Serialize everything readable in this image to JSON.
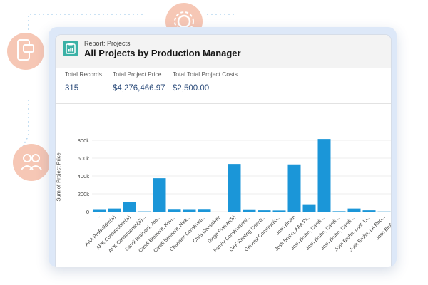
{
  "decorations": {
    "icons": [
      "gear-icon",
      "phone-chat-icon",
      "people-icon"
    ],
    "accent_color": "#f6c7b5"
  },
  "report": {
    "label": "Report: Projects",
    "title": "All Projects by Production Manager"
  },
  "summary": [
    {
      "label": "Total Records",
      "value": "315"
    },
    {
      "label": "Total Project Price",
      "value": "$4,276,466.97"
    },
    {
      "label": "Total Total Project Costs",
      "value": "$2,500.00"
    }
  ],
  "chart_data": {
    "type": "bar",
    "ylabel": "Sum of Project Price",
    "ylim": [
      0,
      800000
    ],
    "y_ticks": [
      0,
      200000,
      400000,
      600000,
      800000
    ],
    "y_tick_labels": [
      "0",
      "200k",
      "400k",
      "600k",
      "800k"
    ],
    "bar_color": "#1b96d8",
    "categories": [
      "-",
      "AAA ProBuilder(S)",
      "APK Construction(S)",
      "APK Construction(S)...",
      "Candi Brainard, Jos...",
      "Candi Brainard, Kevi...",
      "Candi Brainard, Nick...",
      "Chandler Constructi...",
      "Chris Gonsalves",
      "Diego Puente(S)",
      "Family Construction/...",
      "GAF Roofing Constr...",
      "General Constructio...",
      "Josh Bruhn",
      "Josh Bruhn, AAA Pr...",
      "Josh Bruhn, Candi ...",
      "Josh Bruhn, Candi ...",
      "Josh Bruhn, Candi ...",
      "Josh Bruhn, Lank Li...",
      "Josh Bruhn, LA Roo...",
      "Josh Bruhn, ..."
    ],
    "values": [
      20000,
      35000,
      110000,
      3000,
      375000,
      22000,
      20000,
      22000,
      0,
      535000,
      18000,
      15000,
      13000,
      530000,
      75000,
      815000,
      5000,
      35000,
      15000,
      2000,
      10000
    ]
  }
}
